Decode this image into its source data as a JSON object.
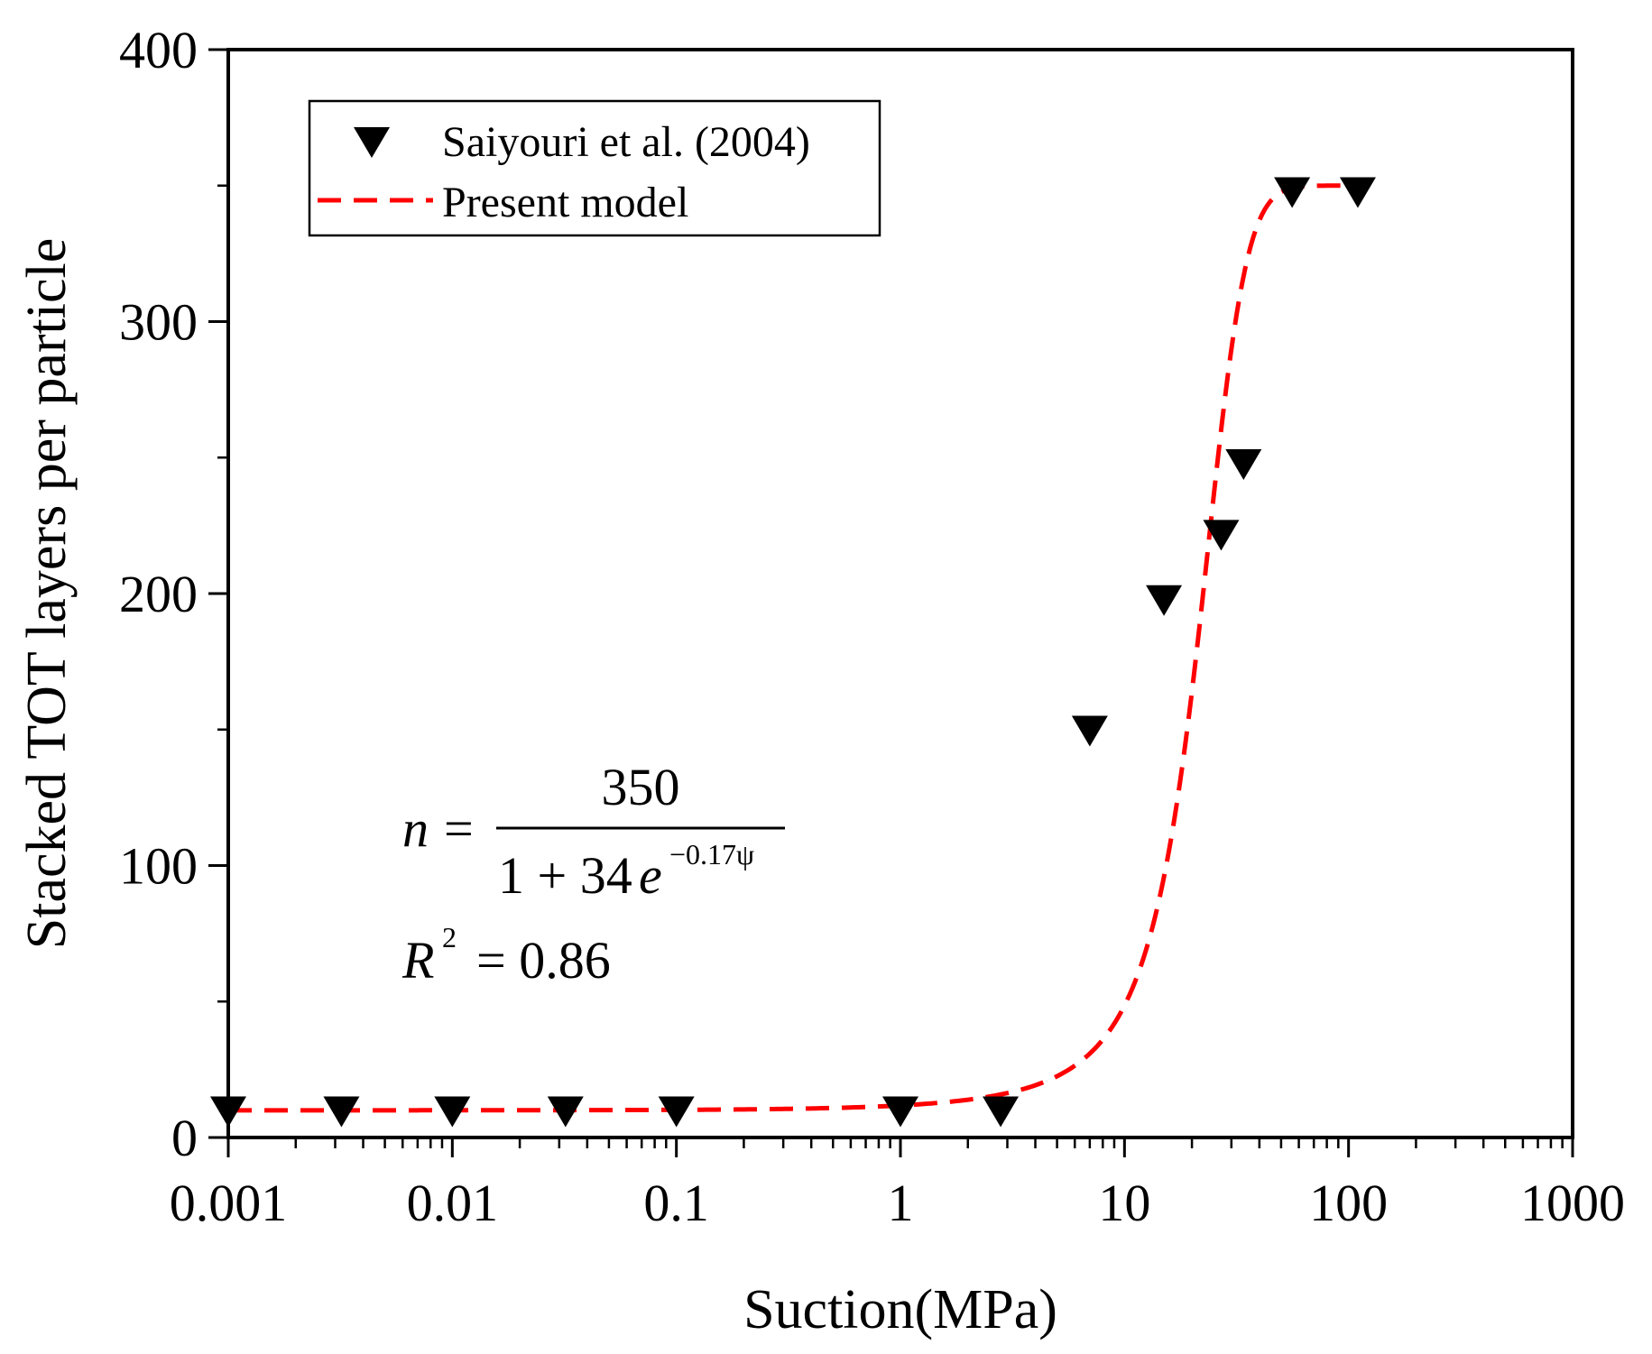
{
  "chart_data": {
    "type": "scatter",
    "xlabel": "Suction(MPa)",
    "ylabel": "Stacked TOT layers per particle",
    "x_scale": "log",
    "xlim": [
      0.001,
      1000
    ],
    "ylim": [
      0,
      400
    ],
    "x_ticks": [
      0.001,
      0.01,
      0.1,
      1,
      10,
      100,
      1000
    ],
    "x_tick_labels": [
      "0.001",
      "0.01",
      "0.1",
      "1",
      "10",
      "100",
      "1000"
    ],
    "y_ticks": [
      0,
      100,
      200,
      300,
      400
    ],
    "y_tick_labels": [
      "0",
      "100",
      "200",
      "300",
      "400"
    ],
    "grid": false,
    "legend_position": "top-left",
    "series": [
      {
        "name": "Saiyouri et al. (2004)",
        "kind": "markers",
        "marker": "down-triangle",
        "color": "#000000",
        "x": [
          0.001,
          0.0032,
          0.01,
          0.032,
          0.1,
          1,
          2.8,
          7,
          15,
          27,
          34,
          56,
          110
        ],
        "y": [
          10,
          10,
          10,
          10,
          10,
          10,
          10,
          150,
          198,
          222,
          248,
          348,
          348
        ]
      },
      {
        "name": "Present model",
        "kind": "line",
        "style": "dashed",
        "color": "#ff0000",
        "model": {
          "numerator": 350,
          "a": 34,
          "b": 0.17
        }
      }
    ],
    "annotations": {
      "equation": {
        "lhs": "n",
        "equals": "=",
        "numerator": "350",
        "denominator_base": "1 + 34",
        "denominator_e": "e",
        "exponent": "−0.17ψ"
      },
      "r_squared": {
        "symbol": "R",
        "power": "2",
        "value_text": "= 0.86"
      }
    }
  }
}
